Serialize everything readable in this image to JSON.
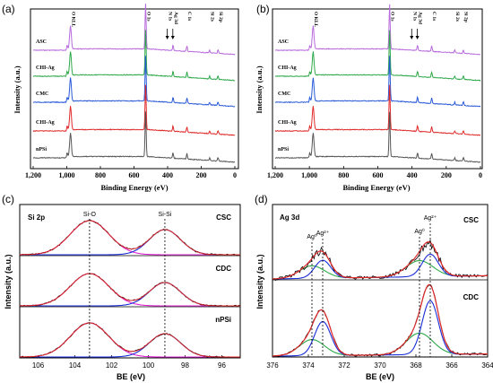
{
  "chart_data": [
    {
      "panel": "(a)",
      "type": "line",
      "xlabel": "Binding Energy (eV)",
      "ylabel": "Intensity (a.u.)",
      "xlim": [
        1200,
        0
      ],
      "x_ticks": [
        "1,200",
        "1,000",
        "800",
        "600",
        "400",
        "200",
        "0"
      ],
      "series": [
        {
          "name": "ASC",
          "color": "#b86bdc"
        },
        {
          "name": "CHI-Ag",
          "color": "#2ea84a"
        },
        {
          "name": "CMC",
          "color": "#2a5ad8"
        },
        {
          "name": "CHI-Ag",
          "color": "#e02a2a"
        },
        {
          "name": "nPSi",
          "color": "#555555"
        }
      ],
      "annotations": [
        "O KLL",
        "O 1s",
        "N 1s",
        "Ag 3d",
        "C 1s",
        "Si 2s",
        "Si 2p"
      ]
    },
    {
      "panel": "(b)",
      "type": "line",
      "xlabel": "Binding Energy (eV)",
      "ylabel": "Intensity (a.u.)",
      "xlim": [
        1200,
        0
      ],
      "x_ticks": [
        "1,200",
        "1,000",
        "800",
        "600",
        "400",
        "200",
        "0"
      ],
      "series": [
        {
          "name": "ASC",
          "color": "#b86bdc"
        },
        {
          "name": "CHI-Ag",
          "color": "#2ea84a"
        },
        {
          "name": "CMC",
          "color": "#2a5ad8"
        },
        {
          "name": "CHI-Ag",
          "color": "#e02a2a"
        },
        {
          "name": "nPSi",
          "color": "#555555"
        }
      ],
      "annotations": [
        "O KLL",
        "O 1s",
        "N 1s",
        "Ag 3d",
        "C 1s",
        "Si 2s",
        "Si 2p"
      ]
    },
    {
      "panel": "(c)",
      "type": "line",
      "title": "Si 2p",
      "xlabel": "BE (eV)",
      "ylabel": "Intensity (a.u.)",
      "xlim": [
        107,
        95
      ],
      "x_ticks": [
        "106",
        "104",
        "102",
        "100",
        "98",
        "96"
      ],
      "series": [
        {
          "name": "CSC"
        },
        {
          "name": "CDC"
        },
        {
          "name": "nPSi"
        }
      ],
      "peaks": [
        {
          "label": "Si-O",
          "center": 103.2,
          "color": "#e020d0"
        },
        {
          "label": "Si-Si",
          "center": 99.1,
          "color": "#1a2ed8"
        }
      ],
      "fit_color": "#e02a2a"
    },
    {
      "panel": "(d)",
      "type": "line",
      "title": "Ag 3d",
      "xlabel": "BE (eV)",
      "ylabel": "Intensity (a.u.)",
      "xlim": [
        376,
        364
      ],
      "x_ticks": [
        "376",
        "374",
        "372",
        "370",
        "368",
        "366",
        "364"
      ],
      "series": [
        {
          "name": "CSC"
        },
        {
          "name": "CDC"
        }
      ],
      "peaks": [
        {
          "label": "Ag⁰",
          "center": 373.8
        },
        {
          "label": "Ag²⁺",
          "center": 373.2
        },
        {
          "label": "Ag⁰",
          "center": 367.8
        },
        {
          "label": "Ag²⁺",
          "center": 367.2
        }
      ],
      "colors": {
        "raw": "#000000",
        "fit": "#e02a2a",
        "ag0": "#2ea84a",
        "ag2": "#1a2ed8"
      }
    }
  ]
}
